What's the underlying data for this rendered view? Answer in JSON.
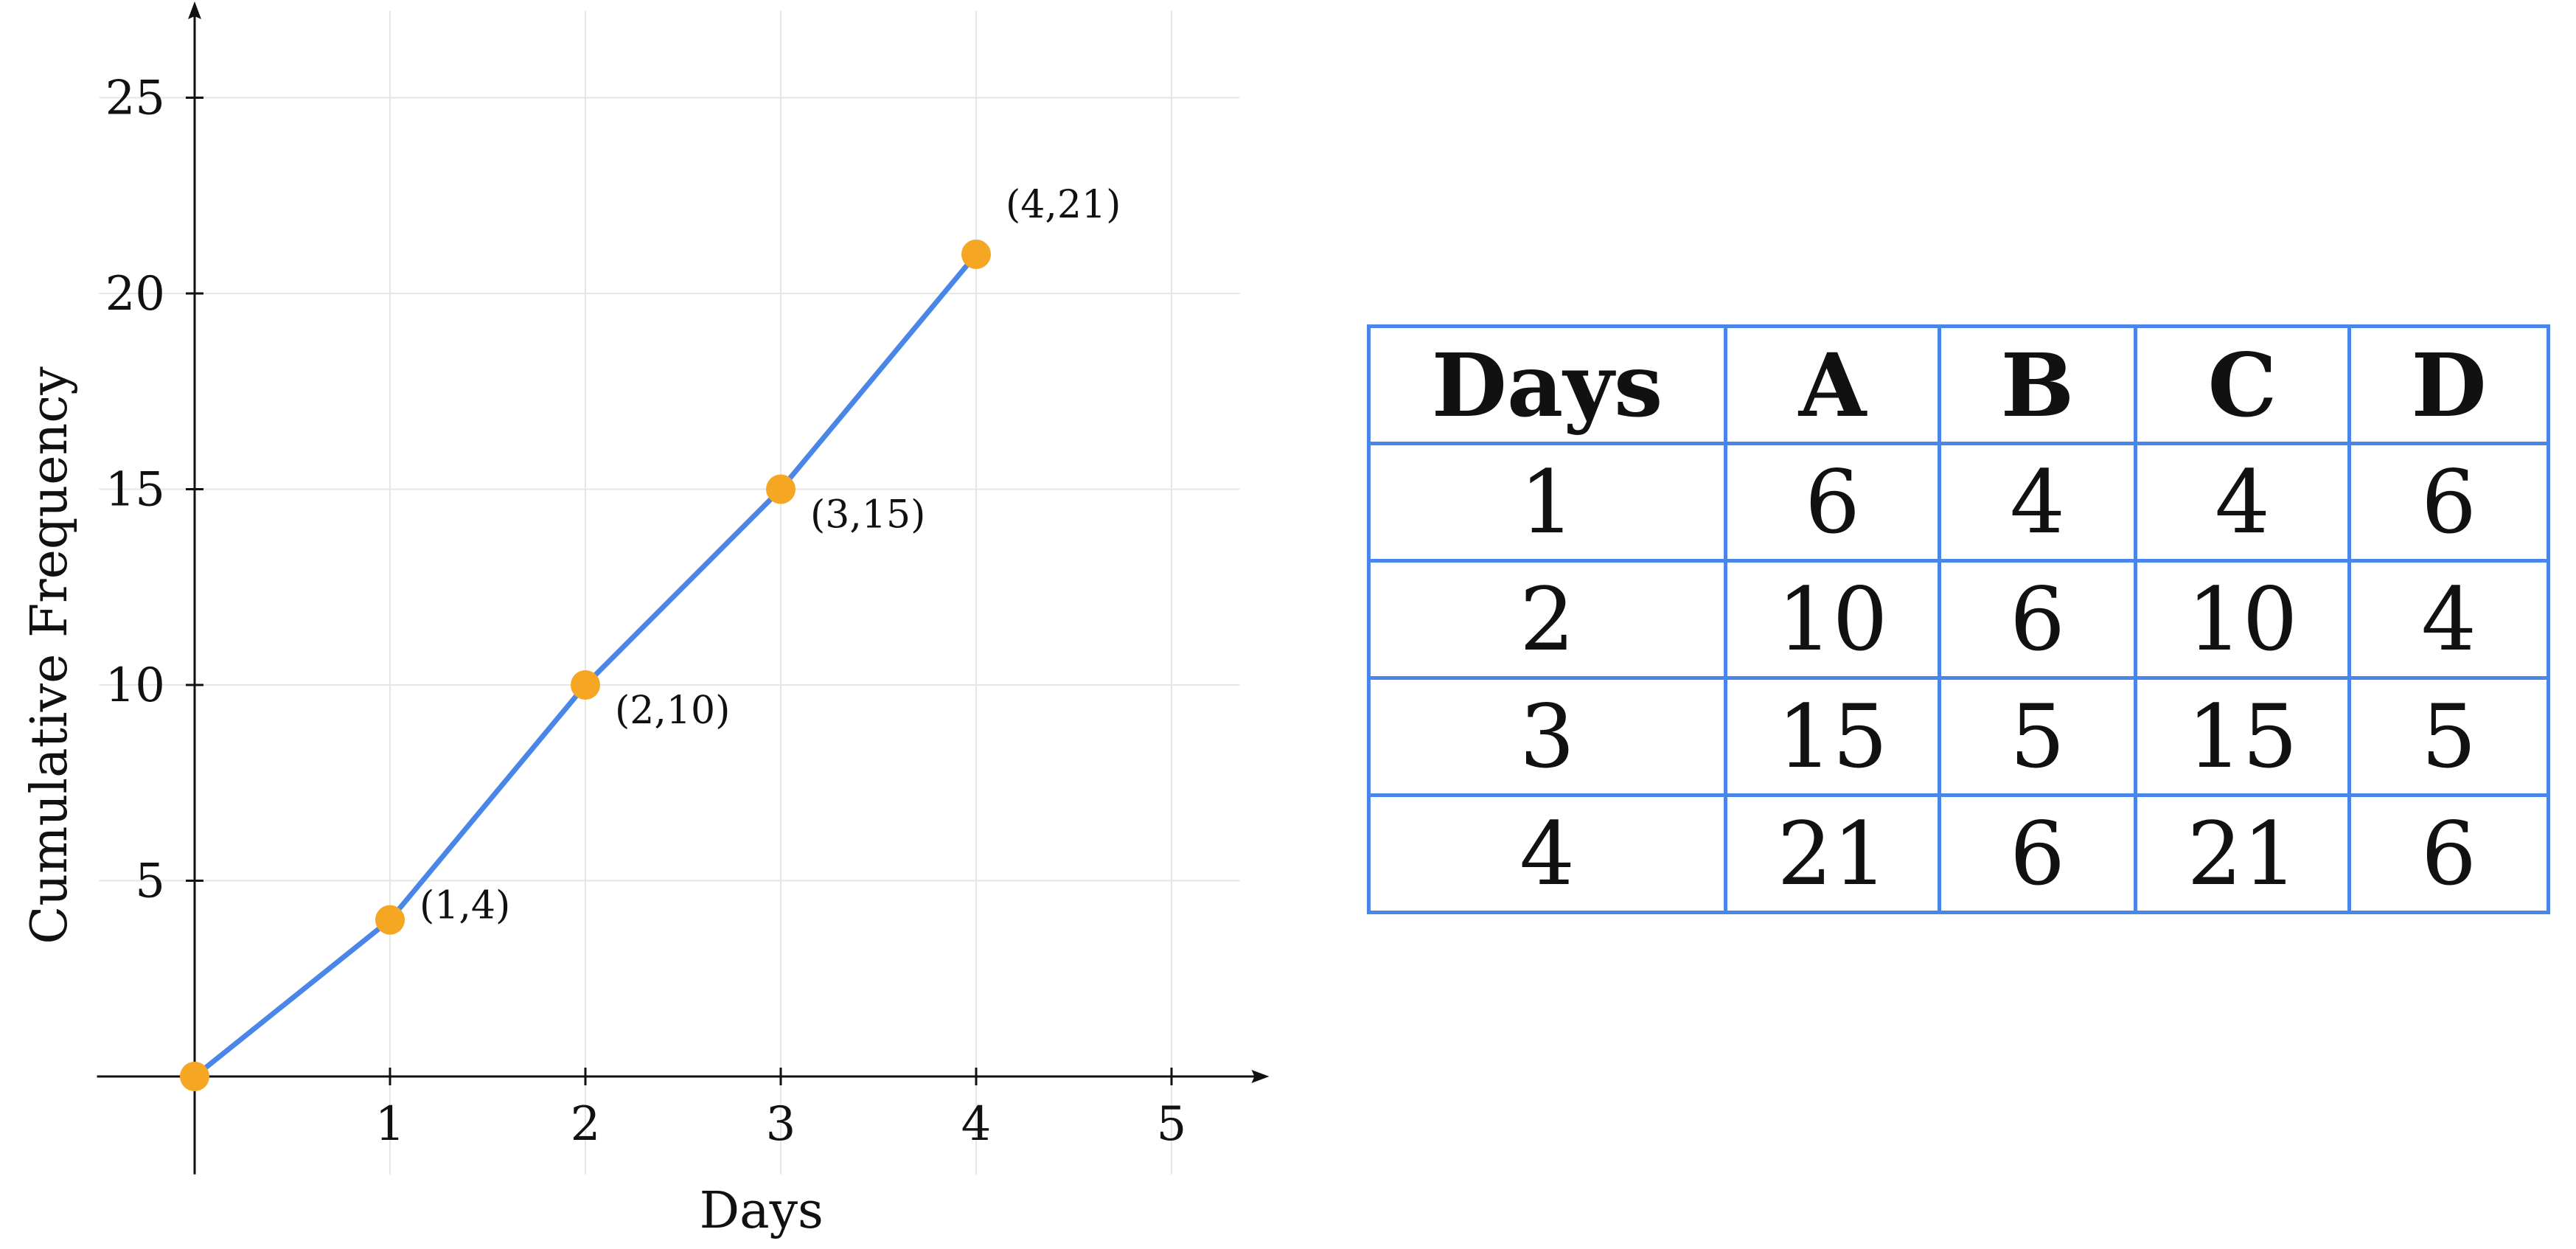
{
  "chart_data": {
    "type": "line",
    "title": "",
    "xlabel": "Days",
    "ylabel": "Cumulative Frequency",
    "xlim": [
      -0.5,
      5.5
    ],
    "ylim": [
      -2.5,
      27.5
    ],
    "x_ticks": [
      1,
      2,
      3,
      4,
      5
    ],
    "y_ticks": [
      5,
      10,
      15,
      20,
      25
    ],
    "grid": true,
    "series": [
      {
        "x": [
          0,
          1,
          2,
          3,
          4
        ],
        "y": [
          0,
          4,
          10,
          15,
          21
        ]
      }
    ],
    "annotations": [
      {
        "text": "(1,4)",
        "x": 1,
        "y": 4
      },
      {
        "text": "(2,10)",
        "x": 2,
        "y": 10
      },
      {
        "text": "(3,15)",
        "x": 3,
        "y": 15
      },
      {
        "text": "(4,21)",
        "x": 4,
        "y": 21
      }
    ],
    "colors": {
      "line": "#4a86e8",
      "marker": "#f5a623",
      "grid": "#e6e6e6",
      "axis": "#111111"
    }
  },
  "table": {
    "headers": [
      "Days",
      "A",
      "B",
      "C",
      "D"
    ],
    "rows": [
      [
        "1",
        "6",
        "4",
        "4",
        "6"
      ],
      [
        "2",
        "10",
        "6",
        "10",
        "4"
      ],
      [
        "3",
        "15",
        "5",
        "15",
        "5"
      ],
      [
        "4",
        "21",
        "6",
        "21",
        "6"
      ]
    ],
    "border_color": "#4a86e8"
  }
}
